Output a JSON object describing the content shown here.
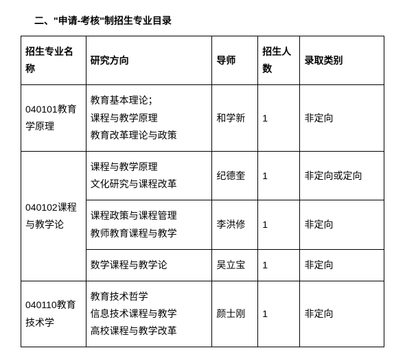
{
  "title": "二、\"申请-考核\"制招生专业目录",
  "headers": {
    "major": "招生专业名称",
    "direction": "研究方向",
    "advisor": "导师",
    "count": "招生人数",
    "category": "录取类别"
  },
  "rows": [
    {
      "major": "040101教育学原理",
      "direction": "教育基本理论；\n课程与教学原理\n教育改革理论与政策",
      "advisor": "和学新",
      "count": "1",
      "category": "非定向"
    },
    {
      "major": "040102课程与教学论",
      "direction": "课程与教学原理\n文化研究与课程改革",
      "advisor": "纪德奎",
      "count": "1",
      "category": "非定向或定向"
    },
    {
      "direction": "课程政策与课程管理\n教师教育课程与教学",
      "advisor": "李洪修",
      "count": "1",
      "category": "非定向"
    },
    {
      "direction": "数学课程与教学论",
      "advisor": "吴立宝",
      "count": "1",
      "category": "非定向"
    },
    {
      "major": "040110教育技术学",
      "direction": "教育技术哲学\n信息技术课程与教学\n高校课程与教学改革",
      "advisor": "颜士刚",
      "count": "1",
      "category": "非定向"
    }
  ],
  "styling": {
    "border_color": "#000000",
    "background_color": "#ffffff",
    "text_color": "#000000",
    "font_size": 14,
    "title_font_size": 14,
    "title_font_weight": "bold",
    "line_height": 1.8,
    "cell_padding": "10px 6px",
    "column_widths": {
      "major": 85,
      "direction": 165,
      "advisor": 60,
      "count": 55,
      "category": 110
    }
  }
}
